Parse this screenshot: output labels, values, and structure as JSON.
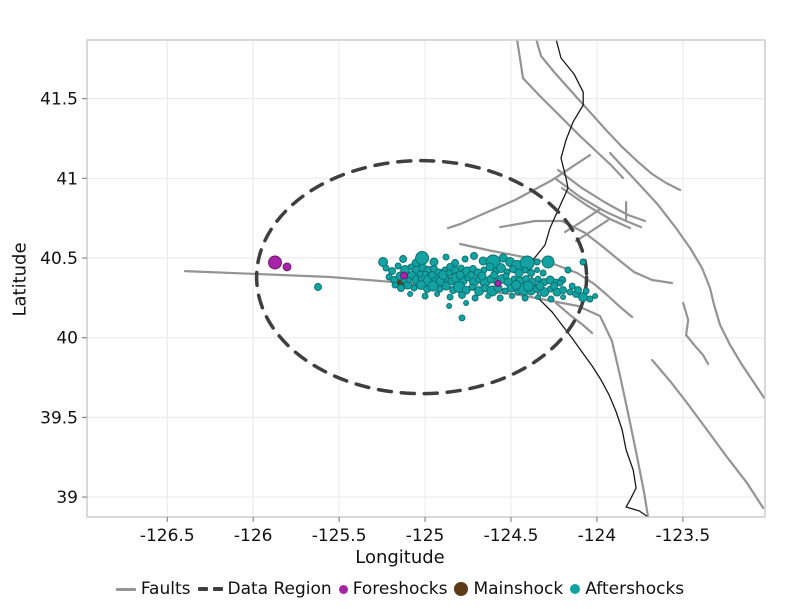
{
  "axes": {
    "xlabel": "Longitude",
    "ylabel": "Latitude"
  },
  "legend": {
    "items": [
      {
        "label": "Faults",
        "marker": "line",
        "color": "#949494"
      },
      {
        "label": "Data Region",
        "marker": "dashes",
        "color": "#3f3f3f"
      },
      {
        "label": "Foreshocks",
        "marker": "dot",
        "color": "#A625A6"
      },
      {
        "label": "Mainshock",
        "marker": "dot",
        "color": "#5F3A17"
      },
      {
        "label": "Aftershocks",
        "marker": "dot",
        "color": "#12A2A2"
      }
    ]
  },
  "chart_data": {
    "type": "scatter",
    "xlabel": "Longitude",
    "ylabel": "Latitude",
    "xlim": [
      -126.967,
      -123.022
    ],
    "ylim": [
      38.875,
      41.868
    ],
    "grid": true,
    "legend_position": "bottom",
    "x_ticks": [
      {
        "v": -126.5,
        "label": "-126.5"
      },
      {
        "v": -126,
        "label": "-126"
      },
      {
        "v": -125.5,
        "label": "-125.5"
      },
      {
        "v": -125,
        "label": "-125"
      },
      {
        "v": -124.5,
        "label": "-124.5"
      },
      {
        "v": -124,
        "label": "-124"
      },
      {
        "v": -123.5,
        "label": "-123.5"
      }
    ],
    "y_ticks": [
      {
        "v": 41.5,
        "label": "41.5"
      },
      {
        "v": 41,
        "label": "41"
      },
      {
        "v": 40.5,
        "label": "40.5"
      },
      {
        "v": 40,
        "label": "40"
      },
      {
        "v": 39.5,
        "label": "39.5"
      },
      {
        "v": 39,
        "label": "39"
      }
    ],
    "style": {
      "grid_color": "#ececec",
      "frame_color": "#c9c9c9",
      "tick_color": "#8a8a8a",
      "tick_text_color": "#111111",
      "fault_color": "#949494",
      "fault_width": 2.2,
      "coast_color": "#1a1a1a",
      "coast_width": 1.3,
      "region_color": "#3f3f3f",
      "region_width": 3.5,
      "region_dash": "13 10",
      "foreshock_fill": "#A625A6",
      "foreshock_stroke": "#6E156E",
      "mainshock_fill": "#5F3A17",
      "mainshock_stroke": "#3A2209",
      "aftershock_fill": "#12A2A2",
      "aftershock_stroke": "#0A6D6D"
    },
    "data_region": {
      "center": [
        -125.02,
        40.38
      ],
      "semi_axes": [
        0.96,
        0.731
      ]
    },
    "faults": [
      [
        [
          -126.397,
          40.418
        ],
        [
          -125.553,
          40.381
        ],
        [
          -124.971,
          40.331
        ],
        [
          -124.447,
          40.268
        ],
        [
          -124.11,
          40.199
        ],
        [
          -123.982,
          40.136
        ],
        [
          -123.912,
          39.979
        ],
        [
          -123.865,
          39.76
        ],
        [
          -123.819,
          39.528
        ],
        [
          -123.772,
          39.283
        ],
        [
          -123.726,
          39.032
        ],
        [
          -123.702,
          38.875
        ]
      ],
      [
        [
          -124.465,
          41.874
        ],
        [
          -124.448,
          41.755
        ],
        [
          -124.43,
          41.629
        ],
        [
          -124.331,
          41.516
        ],
        [
          -124.215,
          41.391
        ],
        [
          -124.098,
          41.265
        ],
        [
          -123.993,
          41.159
        ],
        [
          -123.912,
          41.077
        ],
        [
          -123.848,
          41.002
        ]
      ],
      [
        [
          -124.354,
          41.874
        ],
        [
          -124.325,
          41.767
        ],
        [
          -124.249,
          41.667
        ],
        [
          -124.156,
          41.554
        ],
        [
          -124.051,
          41.428
        ],
        [
          -123.947,
          41.303
        ],
        [
          -123.853,
          41.196
        ],
        [
          -123.76,
          41.102
        ],
        [
          -123.679,
          41.027
        ],
        [
          -123.597,
          40.971
        ],
        [
          -123.516,
          40.927
        ]
      ],
      [
        [
          -124.226,
          41.052
        ],
        [
          -124.087,
          40.939
        ],
        [
          -123.947,
          40.845
        ],
        [
          -123.819,
          40.77
        ],
        [
          -123.72,
          40.732
        ]
      ],
      [
        [
          -124.238,
          40.996
        ],
        [
          -124.098,
          40.883
        ],
        [
          -123.959,
          40.795
        ],
        [
          -123.83,
          40.732
        ],
        [
          -123.743,
          40.694
        ]
      ],
      [
        [
          -124.203,
          40.939
        ],
        [
          -124.063,
          40.833
        ],
        [
          -123.924,
          40.745
        ],
        [
          -123.807,
          40.688
        ]
      ],
      [
        [
          -123.83,
          40.851
        ],
        [
          -123.83,
          40.745
        ]
      ],
      [
        [
          -123.924,
          41.159
        ],
        [
          -123.772,
          40.983
        ],
        [
          -123.644,
          40.833
        ],
        [
          -123.54,
          40.688
        ],
        [
          -123.458,
          40.563
        ],
        [
          -123.388,
          40.437
        ],
        [
          -123.342,
          40.312
        ],
        [
          -123.318,
          40.205
        ],
        [
          -123.283,
          40.08
        ],
        [
          -123.225,
          39.954
        ],
        [
          -123.155,
          39.829
        ],
        [
          -123.085,
          39.716
        ],
        [
          -123.027,
          39.622
        ]
      ],
      [
        [
          -124.04,
          41.146
        ],
        [
          -124.261,
          40.989
        ],
        [
          -124.476,
          40.864
        ],
        [
          -124.663,
          40.776
        ],
        [
          -124.796,
          40.713
        ],
        [
          -124.866,
          40.688
        ]
      ],
      [
        [
          -124.796,
          40.588
        ],
        [
          -124.61,
          40.544
        ],
        [
          -124.424,
          40.506
        ],
        [
          -124.249,
          40.462
        ],
        [
          -124.115,
          40.406
        ],
        [
          -124.016,
          40.337
        ],
        [
          -123.941,
          40.268
        ],
        [
          -123.865,
          40.193
        ],
        [
          -123.795,
          40.13
        ]
      ],
      [
        [
          -124.563,
          40.694
        ],
        [
          -124.36,
          40.732
        ],
        [
          -124.203,
          40.732
        ],
        [
          -124.069,
          40.657
        ],
        [
          -123.964,
          40.569
        ],
        [
          -123.865,
          40.481
        ],
        [
          -123.784,
          40.412
        ],
        [
          -123.679,
          40.362
        ],
        [
          -123.563,
          40.343
        ]
      ],
      [
        [
          -123.679,
          39.86
        ],
        [
          -123.574,
          39.728
        ],
        [
          -123.475,
          39.59
        ],
        [
          -123.359,
          39.421
        ],
        [
          -123.243,
          39.251
        ],
        [
          -123.126,
          39.088
        ],
        [
          -123.033,
          38.932
        ]
      ],
      [
        [
          -123.498,
          40.218
        ],
        [
          -123.469,
          40.111
        ],
        [
          -123.481,
          40.017
        ],
        [
          -123.434,
          39.954
        ],
        [
          -123.382,
          39.891
        ],
        [
          -123.353,
          39.835
        ]
      ],
      [
        [
          -124.238,
          40.218
        ],
        [
          -124.156,
          40.142
        ],
        [
          -124.081,
          40.08
        ],
        [
          -124.028,
          40.029
        ]
      ],
      [
        [
          -123.981,
          40.807
        ],
        [
          -124.092,
          40.726
        ],
        [
          -124.185,
          40.663
        ]
      ],
      [
        [
          -123.935,
          40.738
        ],
        [
          -124.04,
          40.663
        ],
        [
          -124.121,
          40.607
        ]
      ]
    ],
    "coastline": [
      [
        -124.238,
        41.874
      ],
      [
        -124.209,
        41.755
      ],
      [
        -124.133,
        41.654
      ],
      [
        -124.08,
        41.541
      ],
      [
        -124.08,
        41.46
      ],
      [
        -124.139,
        41.353
      ],
      [
        -124.18,
        41.24
      ],
      [
        -124.209,
        41.127
      ],
      [
        -124.18,
        41.002
      ],
      [
        -124.168,
        40.939
      ],
      [
        -124.226,
        40.801
      ],
      [
        -124.273,
        40.688
      ],
      [
        -124.302,
        40.582
      ],
      [
        -124.372,
        40.488
      ],
      [
        -124.395,
        40.425
      ],
      [
        -124.354,
        40.312
      ],
      [
        -124.331,
        40.237
      ],
      [
        -124.261,
        40.161
      ],
      [
        -124.203,
        40.08
      ],
      [
        -124.145,
        39.998
      ],
      [
        -124.086,
        39.91
      ],
      [
        -124.028,
        39.823
      ],
      [
        -123.976,
        39.735
      ],
      [
        -123.929,
        39.641
      ],
      [
        -123.888,
        39.534
      ],
      [
        -123.853,
        39.421
      ],
      [
        -123.83,
        39.296
      ],
      [
        -123.789,
        39.17
      ],
      [
        -123.772,
        39.057
      ],
      [
        -123.807,
        38.982
      ],
      [
        -123.83,
        38.938
      ],
      [
        -123.754,
        38.913
      ],
      [
        -123.702,
        38.875
      ]
    ],
    "foreshocks": [
      [
        -125.873,
        40.472,
        6.5
      ],
      [
        -125.803,
        40.444,
        4
      ],
      [
        -125.122,
        40.39,
        3.5
      ],
      [
        -124.575,
        40.34,
        3
      ]
    ],
    "mainshock": [
      [
        -125.125,
        40.343,
        5.5
      ]
    ],
    "aftershocks": [
      [
        -125.244,
        40.475,
        4.5
      ],
      [
        -125.128,
        40.494,
        3.5
      ],
      [
        -125.052,
        40.469,
        4
      ],
      [
        -125.017,
        40.5,
        6.5
      ],
      [
        -124.948,
        40.475,
        4
      ],
      [
        -124.878,
        40.506,
        3
      ],
      [
        -124.825,
        40.469,
        3.5
      ],
      [
        -124.767,
        40.494,
        3
      ],
      [
        -124.715,
        40.513,
        3.5
      ],
      [
        -124.662,
        40.481,
        4
      ],
      [
        -124.604,
        40.475,
        7
      ],
      [
        -124.546,
        40.5,
        4
      ],
      [
        -124.505,
        40.475,
        4.5
      ],
      [
        -124.464,
        40.444,
        6.5
      ],
      [
        -124.406,
        40.469,
        7
      ],
      [
        -124.348,
        40.475,
        3
      ],
      [
        -124.284,
        40.475,
        6
      ],
      [
        -124.081,
        40.475,
        3
      ],
      [
        -125.227,
        40.437,
        3
      ],
      [
        -125.192,
        40.418,
        3.5
      ],
      [
        -125.157,
        40.45,
        3
      ],
      [
        -125.116,
        40.425,
        4.5
      ],
      [
        -125.081,
        40.444,
        3
      ],
      [
        -125.046,
        40.418,
        5
      ],
      [
        -125.012,
        40.437,
        4
      ],
      [
        -124.977,
        40.412,
        5.5
      ],
      [
        -124.948,
        40.431,
        3.5
      ],
      [
        -124.918,
        40.406,
        4
      ],
      [
        -124.884,
        40.425,
        3
      ],
      [
        -124.854,
        40.444,
        3.5
      ],
      [
        -124.82,
        40.418,
        4.5
      ],
      [
        -124.79,
        40.437,
        3
      ],
      [
        -124.755,
        40.412,
        5
      ],
      [
        -124.721,
        40.431,
        3.5
      ],
      [
        -124.691,
        40.406,
        4
      ],
      [
        -124.657,
        40.425,
        3
      ],
      [
        -124.622,
        40.444,
        4
      ],
      [
        -124.587,
        40.418,
        3.5
      ],
      [
        -124.558,
        40.437,
        4.5
      ],
      [
        -124.523,
        40.412,
        3
      ],
      [
        -124.488,
        40.431,
        3.5
      ],
      [
        -124.453,
        40.406,
        4
      ],
      [
        -124.418,
        40.425,
        3
      ],
      [
        -124.383,
        40.406,
        3.5
      ],
      [
        -124.348,
        40.425,
        2.5
      ],
      [
        -124.313,
        40.406,
        3
      ],
      [
        -124.168,
        40.425,
        3
      ],
      [
        -125.209,
        40.381,
        3
      ],
      [
        -125.18,
        40.362,
        3.5
      ],
      [
        -125.145,
        40.387,
        4
      ],
      [
        -125.111,
        40.368,
        5
      ],
      [
        -125.076,
        40.387,
        4.5
      ],
      [
        -125.041,
        40.362,
        5.5
      ],
      [
        -125.006,
        40.381,
        6
      ],
      [
        -124.971,
        40.356,
        6.5
      ],
      [
        -124.942,
        40.375,
        4
      ],
      [
        -124.907,
        40.356,
        5
      ],
      [
        -124.878,
        40.375,
        3.5
      ],
      [
        -124.843,
        40.356,
        4
      ],
      [
        -124.814,
        40.375,
        5.5
      ],
      [
        -124.779,
        40.356,
        4
      ],
      [
        -124.75,
        40.375,
        3
      ],
      [
        -124.715,
        40.349,
        4.5
      ],
      [
        -124.686,
        40.368,
        3.5
      ],
      [
        -124.651,
        40.349,
        5
      ],
      [
        -124.616,
        40.368,
        4
      ],
      [
        -124.581,
        40.349,
        3.5
      ],
      [
        -124.552,
        40.368,
        4.5
      ],
      [
        -124.517,
        40.349,
        4
      ],
      [
        -124.482,
        40.368,
        3
      ],
      [
        -124.447,
        40.349,
        5
      ],
      [
        -124.412,
        40.368,
        3.5
      ],
      [
        -124.377,
        40.349,
        4
      ],
      [
        -124.342,
        40.368,
        3
      ],
      [
        -124.307,
        40.349,
        3.5
      ],
      [
        -124.272,
        40.362,
        4
      ],
      [
        -124.237,
        40.349,
        3
      ],
      [
        -124.202,
        40.362,
        3.5
      ],
      [
        -125.175,
        40.33,
        3
      ],
      [
        -125.14,
        40.311,
        3.5
      ],
      [
        -125.099,
        40.33,
        4
      ],
      [
        -125.064,
        40.311,
        3
      ],
      [
        -125.023,
        40.33,
        4.5
      ],
      [
        -124.988,
        40.305,
        3.5
      ],
      [
        -124.953,
        40.324,
        5
      ],
      [
        -124.913,
        40.305,
        3
      ],
      [
        -124.878,
        40.324,
        4
      ],
      [
        -124.837,
        40.299,
        3.5
      ],
      [
        -124.802,
        40.318,
        5.5
      ],
      [
        -124.761,
        40.299,
        4
      ],
      [
        -124.726,
        40.318,
        3
      ],
      [
        -124.686,
        40.293,
        4.5
      ],
      [
        -124.651,
        40.311,
        3.5
      ],
      [
        -124.61,
        40.293,
        5
      ],
      [
        -124.575,
        40.311,
        4
      ],
      [
        -124.534,
        40.293,
        3
      ],
      [
        -124.499,
        40.311,
        4
      ],
      [
        -124.459,
        40.293,
        3.5
      ],
      [
        -124.424,
        40.305,
        6
      ],
      [
        -124.383,
        40.293,
        4
      ],
      [
        -124.348,
        40.305,
        3.5
      ],
      [
        -124.307,
        40.286,
        4.5
      ],
      [
        -124.272,
        40.305,
        3
      ],
      [
        -124.232,
        40.286,
        4
      ],
      [
        -124.197,
        40.299,
        3.5
      ],
      [
        -124.156,
        40.286,
        3
      ],
      [
        -124.121,
        40.274,
        3.5
      ],
      [
        -125.087,
        40.274,
        2.5
      ],
      [
        -125.0,
        40.261,
        3
      ],
      [
        -124.93,
        40.274,
        2.5
      ],
      [
        -124.854,
        40.255,
        3
      ],
      [
        -124.785,
        40.268,
        3.5
      ],
      [
        -124.709,
        40.249,
        3
      ],
      [
        -124.633,
        40.261,
        2.5
      ],
      [
        -124.563,
        40.249,
        3
      ],
      [
        -124.494,
        40.261,
        2.5
      ],
      [
        -124.418,
        40.249,
        3
      ],
      [
        -124.342,
        40.255,
        2.5
      ],
      [
        -124.267,
        40.243,
        3
      ],
      [
        -124.197,
        40.255,
        2.5
      ],
      [
        -124.081,
        40.255,
        4.5
      ],
      [
        -124.04,
        40.243,
        3
      ],
      [
        -124.144,
        40.324,
        3
      ],
      [
        -124.11,
        40.299,
        3.5
      ],
      [
        -124.063,
        40.293,
        3
      ],
      [
        -124.01,
        40.261,
        2.5
      ],
      [
        -124.214,
        40.343,
        3
      ],
      [
        -125.623,
        40.318,
        3.5
      ],
      [
        -124.785,
        40.124,
        3
      ],
      [
        -124.761,
        40.218,
        2.5
      ],
      [
        -124.86,
        40.199,
        2.5
      ],
      [
        -125.093,
        40.362,
        2.5
      ],
      [
        -125.029,
        40.4,
        3
      ],
      [
        -124.959,
        40.393,
        3.5
      ],
      [
        -124.895,
        40.393,
        4.5
      ],
      [
        -124.86,
        40.406,
        3
      ],
      [
        -124.796,
        40.393,
        4
      ],
      [
        -124.732,
        40.393,
        3.5
      ],
      [
        -124.668,
        40.387,
        4
      ],
      [
        -124.598,
        40.393,
        3.5
      ],
      [
        -124.529,
        40.387,
        3
      ],
      [
        -124.47,
        40.33,
        4.5
      ],
      [
        -124.4,
        40.324,
        5
      ],
      [
        -124.331,
        40.324,
        4
      ],
      [
        -124.249,
        40.324,
        3.5
      ]
    ]
  }
}
